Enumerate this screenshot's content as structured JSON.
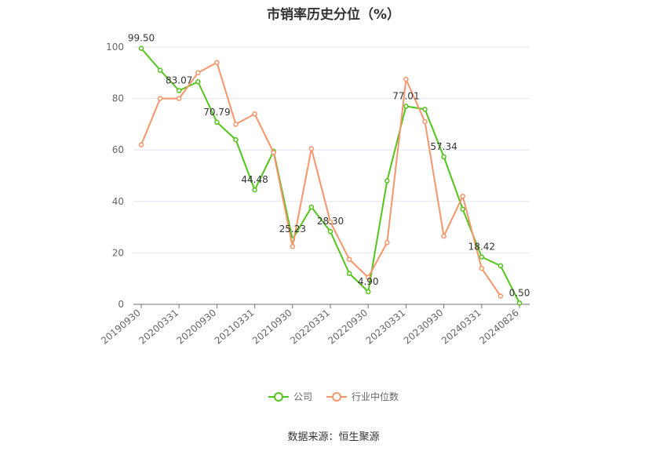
{
  "source_label": "数据来源：恒生聚源",
  "colors": {
    "company": "#52c41a",
    "industry": "#f5956b"
  },
  "chart_data": {
    "type": "line",
    "title": "市销率历史分位（%）",
    "xlabel": "",
    "ylabel": "",
    "ylim": [
      0,
      100
    ],
    "yticks": [
      0,
      20,
      40,
      60,
      80,
      100
    ],
    "grid": true,
    "legend_position": "bottom",
    "x": [
      "20190930",
      "20191231",
      "20200331",
      "20200630",
      "20200930",
      "20201231",
      "20210331",
      "20210630",
      "20210930",
      "20211231",
      "20220331",
      "20220630",
      "20220930",
      "20221231",
      "20230331",
      "20230630",
      "20230930",
      "20231231",
      "20240331",
      "20240630",
      "20240826"
    ],
    "xtick_labels": [
      "20190930",
      "20200331",
      "20200930",
      "20210331",
      "20210930",
      "20220331",
      "20220930",
      "20230331",
      "20230930",
      "20240331",
      "20240826"
    ],
    "series": [
      {
        "name": "公司",
        "color": "#52c41a",
        "values": [
          99.5,
          91,
          83.07,
          86.5,
          70.79,
          64,
          44.48,
          59.5,
          25.23,
          37.8,
          28.3,
          12,
          4.9,
          48,
          77.01,
          75.8,
          57.34,
          37,
          18.42,
          15,
          0.5
        ],
        "data_labels": [
          {
            "index": 0,
            "text": "99.50"
          },
          {
            "index": 2,
            "text": "83.07"
          },
          {
            "index": 4,
            "text": "70.79"
          },
          {
            "index": 6,
            "text": "44.48"
          },
          {
            "index": 8,
            "text": "25.23"
          },
          {
            "index": 10,
            "text": "28.30"
          },
          {
            "index": 12,
            "text": "4.90"
          },
          {
            "index": 14,
            "text": "77.01"
          },
          {
            "index": 16,
            "text": "57.34"
          },
          {
            "index": 18,
            "text": "18.42"
          },
          {
            "index": 20,
            "text": "0.50"
          }
        ]
      },
      {
        "name": "行业中位数",
        "color": "#f5956b",
        "values": [
          62,
          80,
          80,
          90,
          94,
          70,
          74,
          59,
          22.5,
          60.5,
          32,
          17.5,
          10.5,
          24,
          87.5,
          71,
          26.5,
          42,
          14,
          3.2,
          null
        ]
      }
    ]
  }
}
